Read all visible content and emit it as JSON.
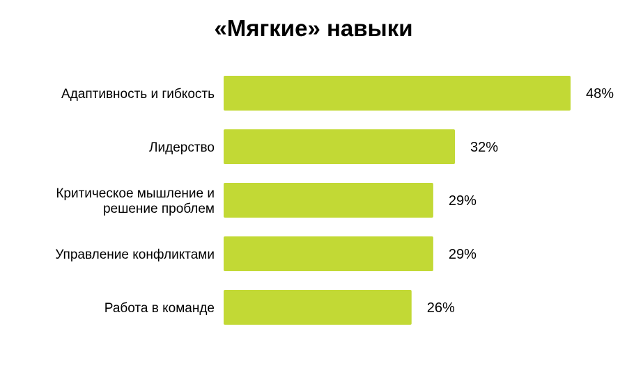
{
  "chart_data": {
    "type": "bar",
    "orientation": "horizontal",
    "title": "«Мягкие» навыки",
    "categories": [
      [
        "Адаптивность и гибкость"
      ],
      [
        "Лидерство"
      ],
      [
        "Критическое мышление и",
        "решение проблем"
      ],
      [
        "Управление конфликтами"
      ],
      [
        "Работа в команде"
      ]
    ],
    "values": [
      48,
      32,
      29,
      29,
      26
    ],
    "value_labels": [
      "48%",
      "32%",
      "29%",
      "29%",
      "26%"
    ],
    "unit": "%",
    "xlim": [
      0,
      48
    ],
    "grid": false,
    "legend": "none",
    "colors": {
      "bar": "#c2d935",
      "text": "#000000",
      "background": "#ffffff"
    }
  }
}
